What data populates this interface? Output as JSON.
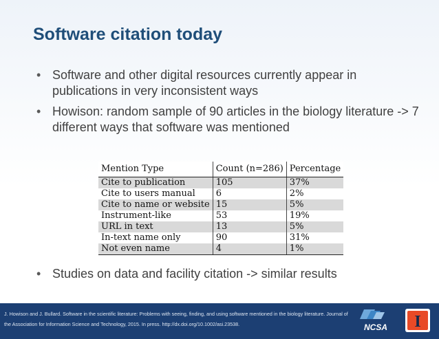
{
  "slide": {
    "title": "Software citation today",
    "bullets": [
      "Software and other digital resources currently appear in publications in very inconsistent ways",
      "Howison: random sample of 90 articles in the biology literature -> 7 different ways that software was mentioned"
    ],
    "bottom_bullet": "Studies on data and facility citation -> similar results",
    "bullet_glyph": "•"
  },
  "table": {
    "headers": [
      "Mention Type",
      "Count (n=286)",
      "Percentage"
    ],
    "rows": [
      [
        "Cite to publication",
        "105",
        "37%"
      ],
      [
        "Cite to users manual",
        "6",
        "2%"
      ],
      [
        "Cite to name or website",
        "15",
        "5%"
      ],
      [
        "Instrument-like",
        "53",
        "19%"
      ],
      [
        "URL in text",
        "13",
        "5%"
      ],
      [
        "In-text name only",
        "90",
        "31%"
      ],
      [
        "Not even name",
        "4",
        "1%"
      ]
    ]
  },
  "footer": {
    "citation": "J. Howison and J. Bullard. Software in the scientific literature: Problems with seeing, finding, and using software mentioned in the biology literature. Journal of the Association for Information Science and Technology, 2015. In press. http://dx.doi.org/10.1002/asi.23538.",
    "ncsa_logo_text": "NCSA",
    "illinois_logo_text": "I",
    "background_color": "#1c3f73"
  },
  "colors": {
    "title": "#1f4e79",
    "body_text": "#404040",
    "table_stripe": "#d9d9d9"
  }
}
